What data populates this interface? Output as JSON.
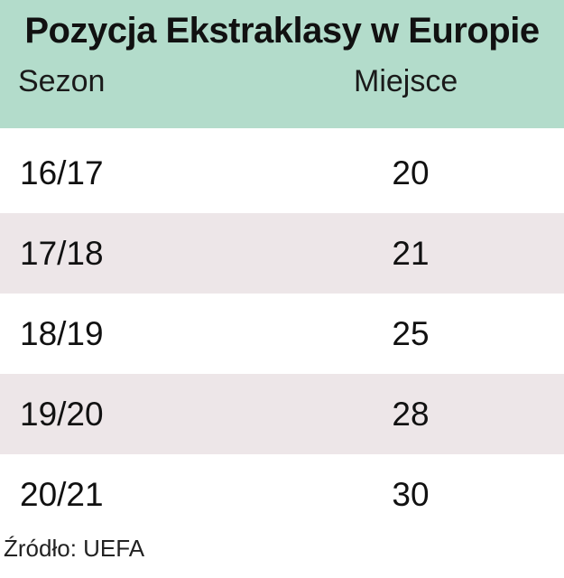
{
  "chart_data": {
    "type": "table",
    "title": "Pozycja Ekstraklasy w Europie",
    "columns": [
      "Sezon",
      "Miejsce"
    ],
    "rows": [
      {
        "season": "16/17",
        "place": "20"
      },
      {
        "season": "17/18",
        "place": "21"
      },
      {
        "season": "18/19",
        "place": "25"
      },
      {
        "season": "19/20",
        "place": "28"
      },
      {
        "season": "20/21",
        "place": "30"
      }
    ],
    "source": "Źródło: UEFA"
  },
  "colors": {
    "header_bg": "#b3dccb",
    "stripe_bg": "#ede6e8"
  }
}
